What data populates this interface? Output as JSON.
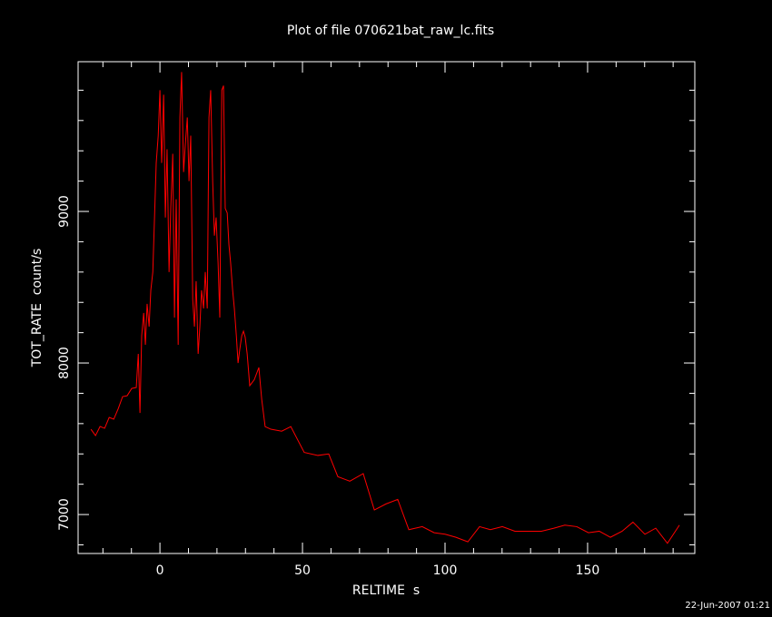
{
  "chart_data": {
    "type": "line",
    "title": "Plot of file 070621bat_raw_lc.fits",
    "x_label": "RELTIME  s",
    "y_label": "TOT_RATE  count/s",
    "footnote": "22-Jun-2007 01:21",
    "xlim": [
      -28.7,
      187.6
    ],
    "ylim": [
      6743,
      9988
    ],
    "xticks": [
      0,
      50,
      100,
      150
    ],
    "yticks": [
      7000,
      8000,
      9000
    ],
    "xminorticks": [
      -20,
      -10,
      10,
      20,
      30,
      40,
      60,
      70,
      80,
      90,
      110,
      120,
      130,
      140,
      160,
      170,
      180
    ],
    "yminorticks": [
      6800,
      7200,
      7400,
      7600,
      7800,
      8200,
      8400,
      8600,
      8800,
      9200,
      9400,
      9600,
      9800
    ],
    "background": "#000000",
    "axis_color": "#ffffff",
    "series": [
      {
        "color": "#ff0000",
        "x": [
          -24.2,
          -22.6,
          -21,
          -19.4,
          -17.8,
          -16.2,
          -14.6,
          -13.1,
          -11.5,
          -9.9,
          -8.3,
          -7.6,
          -7.0,
          -6.4,
          -5.7,
          -5.1,
          -4.5,
          -3.8,
          -3.2,
          -2.5,
          -1.9,
          -1.3,
          -0.6,
          0,
          0.6,
          1.3,
          1.9,
          2.5,
          3.2,
          3.8,
          4.5,
          5.1,
          5.7,
          6.4,
          7.0,
          7.6,
          8.3,
          8.9,
          9.6,
          10.2,
          10.8,
          11.5,
          12.1,
          12.7,
          13.4,
          14.0,
          14.6,
          15.3,
          15.9,
          16.6,
          17.2,
          17.8,
          18.5,
          19.1,
          19.7,
          20.4,
          21.0,
          21.7,
          22.3,
          22.9,
          23.6,
          24.2,
          24.8,
          25.5,
          26.1,
          26.8,
          27.4,
          28.0,
          28.7,
          29.3,
          29.9,
          30.6,
          31.5,
          33.1,
          34.7,
          35.7,
          36.9,
          38.9,
          42.7,
          45.9,
          50.6,
          55.4,
          59.2,
          62.4,
          66.6,
          71.3,
          75.2,
          79.3,
          83.4,
          87.3,
          92.0,
          96.2,
          100,
          103.8,
          108,
          112.1,
          115.9,
          120.1,
          124.5,
          129.3,
          133.8,
          138.2,
          142,
          146.2,
          150.3,
          154.1,
          158,
          162.1,
          165.9,
          170.1,
          173.9,
          178,
          182.2
        ],
        "values": [
          7563,
          7521,
          7581,
          7569,
          7641,
          7629,
          7700,
          7778,
          7784,
          7832,
          7838,
          8060,
          7670,
          8180,
          8330,
          8120,
          8390,
          8240,
          8480,
          8600,
          8960,
          9320,
          9500,
          9800,
          9320,
          9770,
          8960,
          9410,
          8600,
          9020,
          9380,
          8300,
          9080,
          8120,
          9620,
          9920,
          9260,
          9440,
          9620,
          9200,
          9500,
          8420,
          8240,
          8540,
          8060,
          8240,
          8480,
          8360,
          8600,
          8360,
          9620,
          9800,
          9200,
          8840,
          8960,
          8660,
          8300,
          9800,
          9830,
          9020,
          8990,
          8780,
          8660,
          8480,
          8360,
          8180,
          8000,
          8090,
          8180,
          8210,
          8170,
          8060,
          7850,
          7890,
          7970,
          7760,
          7580,
          7563,
          7550,
          7580,
          7410,
          7390,
          7400,
          7250,
          7220,
          7270,
          7030,
          7070,
          7100,
          6900,
          6920,
          6880,
          6870,
          6850,
          6820,
          6920,
          6900,
          6920,
          6890,
          6890,
          6890,
          6910,
          6930,
          6920,
          6880,
          6890,
          6850,
          6890,
          6950,
          6870,
          6910,
          6810,
          6930
        ]
      }
    ]
  }
}
